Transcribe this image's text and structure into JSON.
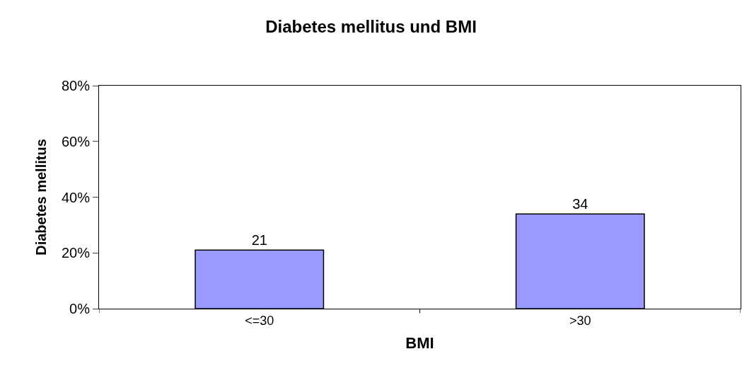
{
  "chart_data": {
    "type": "bar",
    "title": "Diabetes mellitus und BMI",
    "xlabel": "BMI",
    "ylabel": "Diabetes mellitus",
    "categories": [
      "<=30",
      ">30"
    ],
    "values": [
      21,
      34
    ],
    "color": "#9999ff",
    "data_labels": true,
    "ylim": [
      0,
      80
    ],
    "yticks": [
      {
        "value": 0,
        "label": "0%"
      },
      {
        "value": 20,
        "label": "20%"
      },
      {
        "value": 40,
        "label": "40%"
      },
      {
        "value": 60,
        "label": "60%"
      },
      {
        "value": 80,
        "label": "80%"
      }
    ],
    "legend": false
  }
}
